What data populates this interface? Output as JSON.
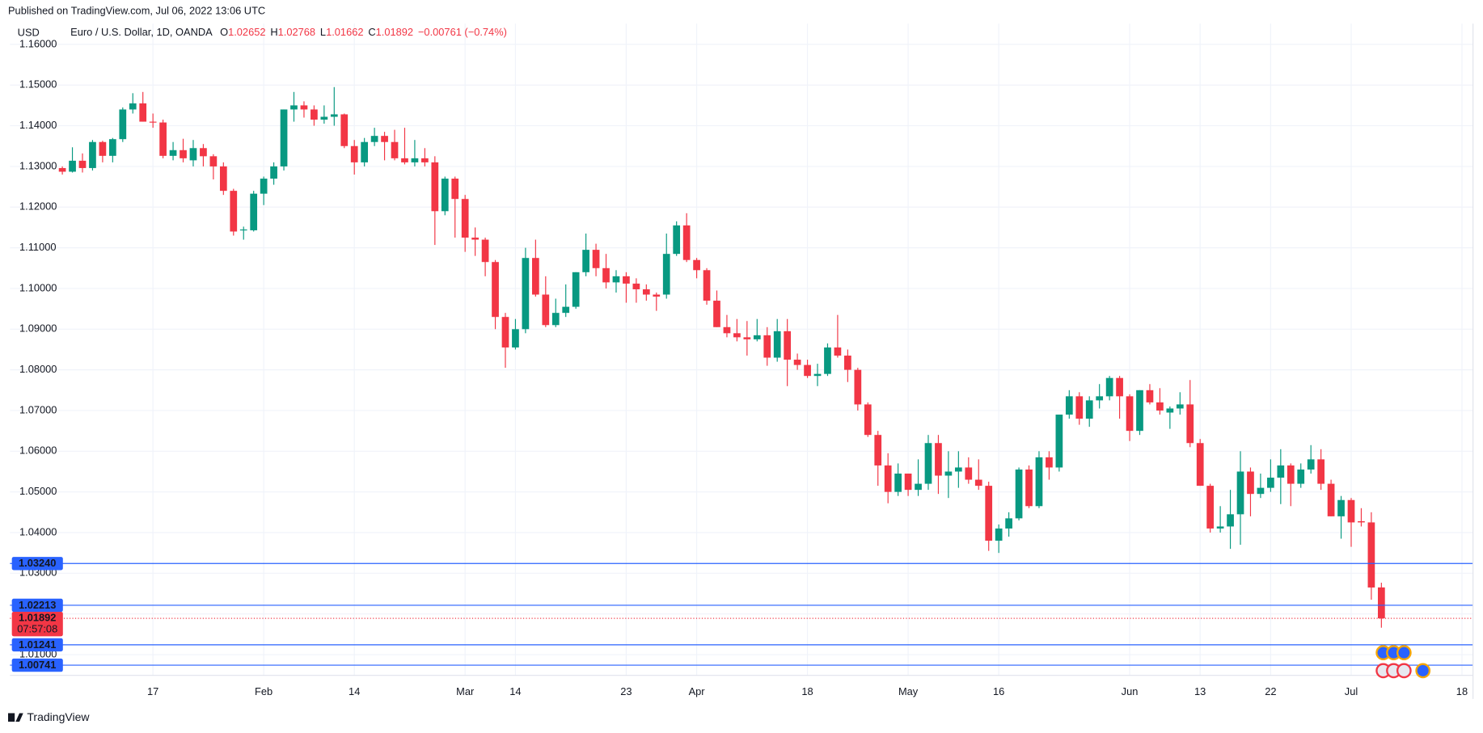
{
  "header": {
    "published": "Published on TradingView.com, Jul 06, 2022 13:06 UTC",
    "footer": "TradingView"
  },
  "chart_data": {
    "type": "candlestick",
    "currency": "USD",
    "symbol": "Euro / U.S. Dollar, 1D, OANDA",
    "legend": [
      {
        "key": "O",
        "text": "1.02652"
      },
      {
        "key": "H",
        "text": "1.02768"
      },
      {
        "key": "L",
        "text": "1.01662"
      },
      {
        "key": "C",
        "text": "1.01892"
      }
    ],
    "change": "−0.00761 (−0.74%)",
    "up_color": "#089981",
    "down_color": "#f23645",
    "grid": true,
    "ylim": [
      1.0049,
      1.1651
    ],
    "yticks": [
      {
        "value": 1.01,
        "label": "1.01000"
      },
      {
        "value": 1.02,
        "label": "1.02000"
      },
      {
        "value": 1.03,
        "label": "1.03000"
      },
      {
        "value": 1.04,
        "label": "1.04000"
      },
      {
        "value": 1.05,
        "label": "1.05000"
      },
      {
        "value": 1.06,
        "label": "1.06000"
      },
      {
        "value": 1.07,
        "label": "1.07000"
      },
      {
        "value": 1.08,
        "label": "1.08000"
      },
      {
        "value": 1.09,
        "label": "1.09000"
      },
      {
        "value": 1.1,
        "label": "1.10000"
      },
      {
        "value": 1.11,
        "label": "1.11000"
      },
      {
        "value": 1.12,
        "label": "1.12000"
      },
      {
        "value": 1.13,
        "label": "1.13000"
      },
      {
        "value": 1.14,
        "label": "1.14000"
      },
      {
        "value": 1.15,
        "label": "1.15000"
      },
      {
        "value": 1.16,
        "label": "1.16000"
      }
    ],
    "xlim": [
      -5.2,
      140.1
    ],
    "xticks": [
      {
        "value": 9,
        "label": "17"
      },
      {
        "value": 20,
        "label": "Feb"
      },
      {
        "value": 29,
        "label": "14"
      },
      {
        "value": 40,
        "label": "Mar"
      },
      {
        "value": 45,
        "label": "14"
      },
      {
        "value": 56,
        "label": "23"
      },
      {
        "value": 63,
        "label": "Apr"
      },
      {
        "value": 74,
        "label": "18"
      },
      {
        "value": 84,
        "label": "May"
      },
      {
        "value": 93,
        "label": "16"
      },
      {
        "value": 106,
        "label": "Jun"
      },
      {
        "value": 113,
        "label": "13"
      },
      {
        "value": 120,
        "label": "22"
      },
      {
        "value": 128,
        "label": "Jul"
      },
      {
        "value": 139,
        "label": "18"
      }
    ],
    "hlines": [
      {
        "value": 1.0324,
        "label": "1.03240"
      },
      {
        "value": 1.02213,
        "label": "1.02213"
      },
      {
        "value": 1.01241,
        "label": "1.01241"
      },
      {
        "value": 1.00741,
        "label": "1.00741"
      }
    ],
    "hline_color": "#2962ff",
    "last_price": {
      "value": 1.01892,
      "label": "1.01892",
      "countdown": "07:57:08"
    },
    "ohlc": [
      [
        1.1296,
        1.13,
        1.128,
        1.1287
      ],
      [
        1.1287,
        1.1347,
        1.1285,
        1.1314
      ],
      [
        1.1314,
        1.1332,
        1.1285,
        1.1296
      ],
      [
        1.1296,
        1.1365,
        1.129,
        1.136
      ],
      [
        1.136,
        1.1363,
        1.131,
        1.1326
      ],
      [
        1.1326,
        1.137,
        1.131,
        1.1367
      ],
      [
        1.1367,
        1.1445,
        1.136,
        1.144
      ],
      [
        1.144,
        1.148,
        1.143,
        1.1455
      ],
      [
        1.1455,
        1.1483,
        1.141,
        1.141
      ],
      [
        1.141,
        1.143,
        1.1395,
        1.1408
      ],
      [
        1.1408,
        1.1415,
        1.132,
        1.1326
      ],
      [
        1.1326,
        1.136,
        1.1315,
        1.134
      ],
      [
        1.134,
        1.1368,
        1.131,
        1.132
      ],
      [
        1.1315,
        1.1365,
        1.13,
        1.1345
      ],
      [
        1.1345,
        1.1355,
        1.13,
        1.1325
      ],
      [
        1.1325,
        1.133,
        1.1268,
        1.13
      ],
      [
        1.13,
        1.131,
        1.123,
        1.124
      ],
      [
        1.124,
        1.1245,
        1.113,
        1.114
      ],
      [
        1.1143,
        1.1152,
        1.112,
        1.1145
      ],
      [
        1.1143,
        1.124,
        1.114,
        1.1233
      ],
      [
        1.1233,
        1.1275,
        1.1205,
        1.127
      ],
      [
        1.127,
        1.131,
        1.1255,
        1.13
      ],
      [
        1.13,
        1.144,
        1.129,
        1.144
      ],
      [
        1.144,
        1.1483,
        1.141,
        1.145
      ],
      [
        1.145,
        1.146,
        1.142,
        1.144
      ],
      [
        1.144,
        1.145,
        1.14,
        1.1415
      ],
      [
        1.1415,
        1.145,
        1.1405,
        1.1422
      ],
      [
        1.1422,
        1.1495,
        1.14,
        1.1428
      ],
      [
        1.1428,
        1.143,
        1.1345,
        1.135
      ],
      [
        1.135,
        1.1365,
        1.128,
        1.131
      ],
      [
        1.131,
        1.137,
        1.13,
        1.136
      ],
      [
        1.136,
        1.1395,
        1.135,
        1.1375
      ],
      [
        1.1375,
        1.1385,
        1.1315,
        1.136
      ],
      [
        1.136,
        1.139,
        1.1315,
        1.132
      ],
      [
        1.132,
        1.1395,
        1.1305,
        1.131
      ],
      [
        1.131,
        1.1365,
        1.13,
        1.132
      ],
      [
        1.132,
        1.1345,
        1.13,
        1.131
      ],
      [
        1.131,
        1.1325,
        1.1107,
        1.119
      ],
      [
        1.119,
        1.1275,
        1.118,
        1.127
      ],
      [
        1.127,
        1.1275,
        1.1125,
        1.122
      ],
      [
        1.122,
        1.123,
        1.109,
        1.1125
      ],
      [
        1.1125,
        1.115,
        1.108,
        1.112
      ],
      [
        1.112,
        1.1125,
        1.103,
        1.1065
      ],
      [
        1.1065,
        1.107,
        1.09,
        1.093
      ],
      [
        1.093,
        1.094,
        1.0805,
        1.0855
      ],
      [
        1.0855,
        1.0925,
        1.085,
        1.09
      ],
      [
        1.09,
        1.11,
        1.089,
        1.1075
      ],
      [
        1.1075,
        1.112,
        1.098,
        1.0985
      ],
      [
        1.0985,
        1.103,
        1.0905,
        1.091
      ],
      [
        1.091,
        1.0975,
        1.0905,
        1.094
      ],
      [
        1.094,
        1.101,
        1.093,
        1.0955
      ],
      [
        1.0955,
        1.104,
        1.095,
        1.104
      ],
      [
        1.104,
        1.1135,
        1.103,
        1.1095
      ],
      [
        1.1095,
        1.111,
        1.103,
        1.105
      ],
      [
        1.105,
        1.1085,
        1.1,
        1.1015
      ],
      [
        1.1015,
        1.1045,
        1.099,
        1.103
      ],
      [
        1.103,
        1.104,
        1.0965,
        1.1012
      ],
      [
        1.1012,
        1.1025,
        1.0965,
        1.0998
      ],
      [
        1.0998,
        1.101,
        1.097,
        1.0985
      ],
      [
        1.0985,
        1.099,
        1.0945,
        1.098
      ],
      [
        1.0985,
        1.1135,
        1.0975,
        1.1085
      ],
      [
        1.1085,
        1.1165,
        1.108,
        1.1155
      ],
      [
        1.1155,
        1.1185,
        1.1065,
        1.107
      ],
      [
        1.107,
        1.1075,
        1.1025,
        1.1045
      ],
      [
        1.1045,
        1.105,
        1.096,
        1.097
      ],
      [
        1.097,
        1.0995,
        1.0905,
        1.0905
      ],
      [
        1.0905,
        1.0935,
        1.088,
        1.089
      ],
      [
        1.089,
        1.0925,
        1.087,
        1.088
      ],
      [
        1.088,
        1.092,
        1.0835,
        1.0875
      ],
      [
        1.0875,
        1.0925,
        1.087,
        1.0885
      ],
      [
        1.0885,
        1.0905,
        1.081,
        1.083
      ],
      [
        1.083,
        1.0925,
        1.082,
        1.0895
      ],
      [
        1.0895,
        1.0925,
        1.076,
        1.0825
      ],
      [
        1.0825,
        1.084,
        1.08,
        1.0812
      ],
      [
        1.0812,
        1.0825,
        1.078,
        1.0785
      ],
      [
        1.0785,
        1.0815,
        1.076,
        1.079
      ],
      [
        1.079,
        1.0865,
        1.0785,
        1.0855
      ],
      [
        1.0855,
        1.0935,
        1.083,
        1.0835
      ],
      [
        1.0835,
        1.085,
        1.077,
        1.08
      ],
      [
        1.08,
        1.0805,
        1.07,
        1.0715
      ],
      [
        1.0715,
        1.072,
        1.0635,
        1.064
      ],
      [
        1.064,
        1.065,
        1.0515,
        1.0565
      ],
      [
        1.0565,
        1.0595,
        1.0472,
        1.05
      ],
      [
        1.05,
        1.057,
        1.049,
        1.0545
      ],
      [
        1.0545,
        1.0545,
        1.049,
        1.0505
      ],
      [
        1.0505,
        1.058,
        1.049,
        1.052
      ],
      [
        1.052,
        1.064,
        1.0505,
        1.062
      ],
      [
        1.062,
        1.064,
        1.0495,
        1.054
      ],
      [
        1.054,
        1.06,
        1.0485,
        1.055
      ],
      [
        1.055,
        1.06,
        1.051,
        1.056
      ],
      [
        1.056,
        1.0585,
        1.052,
        1.053
      ],
      [
        1.053,
        1.058,
        1.0505,
        1.0515
      ],
      [
        1.0515,
        1.0525,
        1.0355,
        1.038
      ],
      [
        1.038,
        1.042,
        1.035,
        1.041
      ],
      [
        1.041,
        1.045,
        1.039,
        1.0435
      ],
      [
        1.0435,
        1.056,
        1.043,
        1.0555
      ],
      [
        1.0555,
        1.0565,
        1.046,
        1.0465
      ],
      [
        1.0465,
        1.06,
        1.046,
        1.0585
      ],
      [
        1.0585,
        1.06,
        1.053,
        1.056
      ],
      [
        1.056,
        1.069,
        1.055,
        1.069
      ],
      [
        1.069,
        1.075,
        1.068,
        1.0735
      ],
      [
        1.0735,
        1.0745,
        1.0665,
        1.068
      ],
      [
        1.068,
        1.0735,
        1.066,
        1.0725
      ],
      [
        1.0725,
        1.0765,
        1.0705,
        1.0735
      ],
      [
        1.0735,
        1.0785,
        1.0725,
        1.078
      ],
      [
        1.078,
        1.0785,
        1.068,
        1.0735
      ],
      [
        1.0735,
        1.074,
        1.0625,
        1.065
      ],
      [
        1.065,
        1.075,
        1.064,
        1.075
      ],
      [
        1.075,
        1.0765,
        1.0715,
        1.072
      ],
      [
        1.072,
        1.0755,
        1.069,
        1.07
      ],
      [
        1.0695,
        1.071,
        1.0655,
        1.0705
      ],
      [
        1.0705,
        1.0745,
        1.069,
        1.0715
      ],
      [
        1.0715,
        1.0775,
        1.061,
        1.062
      ],
      [
        1.062,
        1.063,
        1.0515,
        1.0515
      ],
      [
        1.0515,
        1.052,
        1.04,
        1.041
      ],
      [
        1.041,
        1.0465,
        1.04,
        1.0415
      ],
      [
        1.0415,
        1.0505,
        1.036,
        1.0445
      ],
      [
        1.0445,
        1.06,
        1.037,
        1.055
      ],
      [
        1.055,
        1.056,
        1.044,
        1.0495
      ],
      [
        1.0495,
        1.0545,
        1.0485,
        1.051
      ],
      [
        1.051,
        1.058,
        1.05,
        1.0535
      ],
      [
        1.0535,
        1.0605,
        1.047,
        1.0565
      ],
      [
        1.0565,
        1.057,
        1.0465,
        1.052
      ],
      [
        1.052,
        1.057,
        1.051,
        1.0555
      ],
      [
        1.0555,
        1.0615,
        1.0545,
        1.058
      ],
      [
        1.058,
        1.0605,
        1.0505,
        1.052
      ],
      [
        1.052,
        1.053,
        1.044,
        1.044
      ],
      [
        1.044,
        1.049,
        1.0385,
        1.048
      ],
      [
        1.048,
        1.0485,
        1.0365,
        1.0425
      ],
      [
        1.0428,
        1.046,
        1.0415,
        1.0425
      ],
      [
        1.0425,
        1.045,
        1.0235,
        1.0265
      ],
      [
        1.02652,
        1.02768,
        1.01662,
        1.01892
      ]
    ]
  }
}
